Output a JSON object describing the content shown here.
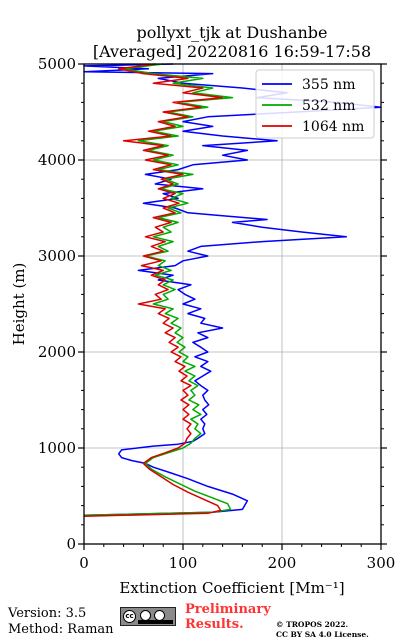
{
  "header": {
    "title_line1": "pollyxt_tjk at Dushanbe",
    "title_line2": "[Averaged] 20220816 16:59-17:58"
  },
  "footer": {
    "version": "Version: 3.5",
    "method": "Method: Raman",
    "prelim_line1": "Preliminary",
    "prelim_line2": "Results.",
    "copyright_line1": "© TROPOS 2022.",
    "copyright_line2": "CC BY SA 4.0 License.",
    "license_icon": "cc-by-sa-icon"
  },
  "chart_data": {
    "type": "line",
    "xlabel": "Extinction Coefficient [Mm⁻¹]",
    "ylabel": "Height (m)",
    "xlim": [
      0,
      300
    ],
    "ylim": [
      0,
      5000
    ],
    "xticks": [
      0,
      100,
      200,
      300
    ],
    "yticks": [
      0,
      1000,
      2000,
      3000,
      4000,
      5000
    ],
    "grid": true,
    "legend_position": "top-right",
    "series": [
      {
        "name": "355 nm",
        "color": "#0000ff",
        "points": [
          [
            0,
            300
          ],
          [
            130,
            330
          ],
          [
            160,
            360
          ],
          [
            165,
            450
          ],
          [
            150,
            520
          ],
          [
            125,
            600
          ],
          [
            105,
            680
          ],
          [
            88,
            740
          ],
          [
            70,
            800
          ],
          [
            62,
            840
          ],
          [
            48,
            870
          ],
          [
            38,
            900
          ],
          [
            35,
            940
          ],
          [
            38,
            980
          ],
          [
            70,
            1020
          ],
          [
            95,
            1040
          ],
          [
            110,
            1070
          ],
          [
            115,
            1100
          ],
          [
            122,
            1150
          ],
          [
            120,
            1200
          ],
          [
            122,
            1250
          ],
          [
            118,
            1300
          ],
          [
            124,
            1350
          ],
          [
            120,
            1400
          ],
          [
            126,
            1450
          ],
          [
            122,
            1500
          ],
          [
            120,
            1550
          ],
          [
            125,
            1600
          ],
          [
            118,
            1650
          ],
          [
            112,
            1700
          ],
          [
            120,
            1750
          ],
          [
            128,
            1800
          ],
          [
            118,
            1850
          ],
          [
            125,
            1900
          ],
          [
            112,
            1950
          ],
          [
            125,
            2000
          ],
          [
            118,
            2050
          ],
          [
            110,
            2100
          ],
          [
            125,
            2150
          ],
          [
            115,
            2200
          ],
          [
            140,
            2250
          ],
          [
            118,
            2300
          ],
          [
            122,
            2350
          ],
          [
            105,
            2400
          ],
          [
            118,
            2450
          ],
          [
            100,
            2500
          ],
          [
            112,
            2550
          ],
          [
            102,
            2600
          ],
          [
            95,
            2650
          ],
          [
            108,
            2700
          ],
          [
            75,
            2750
          ],
          [
            90,
            2800
          ],
          [
            55,
            2850
          ],
          [
            92,
            2900
          ],
          [
            100,
            2950
          ],
          [
            125,
            3000
          ],
          [
            105,
            3050
          ],
          [
            118,
            3100
          ],
          [
            180,
            3150
          ],
          [
            265,
            3200
          ],
          [
            220,
            3250
          ],
          [
            180,
            3300
          ],
          [
            150,
            3350
          ],
          [
            185,
            3380
          ],
          [
            140,
            3420
          ],
          [
            105,
            3450
          ],
          [
            92,
            3500
          ],
          [
            60,
            3550
          ],
          [
            95,
            3600
          ],
          [
            80,
            3650
          ],
          [
            120,
            3700
          ],
          [
            72,
            3750
          ],
          [
            88,
            3800
          ],
          [
            62,
            3850
          ],
          [
            95,
            3900
          ],
          [
            110,
            3950
          ],
          [
            165,
            4000
          ],
          [
            140,
            4050
          ],
          [
            165,
            4100
          ],
          [
            120,
            4150
          ],
          [
            195,
            4200
          ],
          [
            140,
            4250
          ],
          [
            100,
            4300
          ],
          [
            130,
            4350
          ],
          [
            100,
            4400
          ],
          [
            125,
            4450
          ],
          [
            215,
            4500
          ],
          [
            300,
            4550
          ],
          [
            255,
            4600
          ],
          [
            175,
            4650
          ],
          [
            205,
            4700
          ],
          [
            160,
            4750
          ],
          [
            100,
            4800
          ],
          [
            75,
            4850
          ],
          [
            130,
            4900
          ],
          [
            0,
            4920
          ],
          [
            65,
            4950
          ],
          [
            0,
            4980
          ],
          [
            90,
            5000
          ]
        ]
      },
      {
        "name": "532 nm",
        "color": "#00aa00",
        "points": [
          [
            0,
            300
          ],
          [
            130,
            330
          ],
          [
            148,
            360
          ],
          [
            145,
            420
          ],
          [
            130,
            480
          ],
          [
            112,
            550
          ],
          [
            98,
            620
          ],
          [
            82,
            700
          ],
          [
            68,
            780
          ],
          [
            62,
            840
          ],
          [
            70,
            900
          ],
          [
            85,
            950
          ],
          [
            100,
            1000
          ],
          [
            108,
            1050
          ],
          [
            112,
            1100
          ],
          [
            118,
            1150
          ],
          [
            112,
            1200
          ],
          [
            115,
            1250
          ],
          [
            108,
            1300
          ],
          [
            118,
            1350
          ],
          [
            110,
            1400
          ],
          [
            116,
            1450
          ],
          [
            106,
            1500
          ],
          [
            112,
            1550
          ],
          [
            108,
            1600
          ],
          [
            115,
            1650
          ],
          [
            106,
            1700
          ],
          [
            112,
            1750
          ],
          [
            102,
            1800
          ],
          [
            112,
            1850
          ],
          [
            100,
            1900
          ],
          [
            105,
            1950
          ],
          [
            96,
            2000
          ],
          [
            102,
            2050
          ],
          [
            94,
            2100
          ],
          [
            100,
            2150
          ],
          [
            92,
            2200
          ],
          [
            98,
            2250
          ],
          [
            88,
            2300
          ],
          [
            95,
            2350
          ],
          [
            82,
            2400
          ],
          [
            90,
            2450
          ],
          [
            70,
            2500
          ],
          [
            85,
            2550
          ],
          [
            80,
            2600
          ],
          [
            92,
            2650
          ],
          [
            80,
            2700
          ],
          [
            90,
            2750
          ],
          [
            72,
            2800
          ],
          [
            88,
            2850
          ],
          [
            75,
            2900
          ],
          [
            82,
            2950
          ],
          [
            62,
            3000
          ],
          [
            85,
            3050
          ],
          [
            75,
            3100
          ],
          [
            90,
            3150
          ],
          [
            70,
            3200
          ],
          [
            88,
            3250
          ],
          [
            80,
            3300
          ],
          [
            95,
            3350
          ],
          [
            75,
            3400
          ],
          [
            98,
            3450
          ],
          [
            85,
            3500
          ],
          [
            105,
            3550
          ],
          [
            88,
            3600
          ],
          [
            100,
            3650
          ],
          [
            78,
            3700
          ],
          [
            95,
            3750
          ],
          [
            82,
            3800
          ],
          [
            110,
            3850
          ],
          [
            75,
            3900
          ],
          [
            95,
            3950
          ],
          [
            70,
            4000
          ],
          [
            90,
            4050
          ],
          [
            65,
            4100
          ],
          [
            85,
            4150
          ],
          [
            55,
            4200
          ],
          [
            95,
            4250
          ],
          [
            70,
            4300
          ],
          [
            100,
            4350
          ],
          [
            80,
            4400
          ],
          [
            110,
            4450
          ],
          [
            85,
            4500
          ],
          [
            125,
            4550
          ],
          [
            95,
            4600
          ],
          [
            150,
            4650
          ],
          [
            110,
            4700
          ],
          [
            130,
            4750
          ],
          [
            90,
            4800
          ],
          [
            120,
            4850
          ],
          [
            70,
            4900
          ],
          [
            40,
            4950
          ],
          [
            80,
            5000
          ]
        ]
      },
      {
        "name": "1064 nm",
        "color": "#dd0000",
        "points": [
          [
            0,
            290
          ],
          [
            125,
            320
          ],
          [
            138,
            350
          ],
          [
            135,
            400
          ],
          [
            122,
            460
          ],
          [
            105,
            540
          ],
          [
            90,
            620
          ],
          [
            78,
            700
          ],
          [
            66,
            780
          ],
          [
            60,
            840
          ],
          [
            68,
            900
          ],
          [
            82,
            950
          ],
          [
            95,
            1000
          ],
          [
            102,
            1050
          ],
          [
            104,
            1100
          ],
          [
            108,
            1150
          ],
          [
            104,
            1200
          ],
          [
            108,
            1250
          ],
          [
            100,
            1300
          ],
          [
            106,
            1350
          ],
          [
            100,
            1400
          ],
          [
            106,
            1450
          ],
          [
            98,
            1500
          ],
          [
            105,
            1550
          ],
          [
            100,
            1600
          ],
          [
            108,
            1650
          ],
          [
            98,
            1700
          ],
          [
            104,
            1750
          ],
          [
            96,
            1800
          ],
          [
            102,
            1850
          ],
          [
            92,
            1900
          ],
          [
            98,
            1950
          ],
          [
            88,
            2000
          ],
          [
            95,
            2050
          ],
          [
            86,
            2100
          ],
          [
            92,
            2150
          ],
          [
            82,
            2200
          ],
          [
            90,
            2250
          ],
          [
            80,
            2300
          ],
          [
            86,
            2350
          ],
          [
            75,
            2400
          ],
          [
            82,
            2450
          ],
          [
            55,
            2500
          ],
          [
            78,
            2550
          ],
          [
            72,
            2600
          ],
          [
            85,
            2650
          ],
          [
            75,
            2700
          ],
          [
            82,
            2750
          ],
          [
            68,
            2800
          ],
          [
            80,
            2850
          ],
          [
            58,
            2900
          ],
          [
            78,
            2950
          ],
          [
            60,
            3000
          ],
          [
            80,
            3050
          ],
          [
            68,
            3100
          ],
          [
            82,
            3150
          ],
          [
            62,
            3200
          ],
          [
            80,
            3250
          ],
          [
            72,
            3300
          ],
          [
            88,
            3350
          ],
          [
            70,
            3400
          ],
          [
            92,
            3450
          ],
          [
            80,
            3500
          ],
          [
            96,
            3550
          ],
          [
            80,
            3600
          ],
          [
            92,
            3650
          ],
          [
            75,
            3700
          ],
          [
            90,
            3750
          ],
          [
            78,
            3800
          ],
          [
            100,
            3850
          ],
          [
            70,
            3900
          ],
          [
            88,
            3950
          ],
          [
            62,
            4000
          ],
          [
            85,
            4050
          ],
          [
            60,
            4100
          ],
          [
            80,
            4150
          ],
          [
            40,
            4200
          ],
          [
            88,
            4250
          ],
          [
            65,
            4300
          ],
          [
            92,
            4350
          ],
          [
            75,
            4400
          ],
          [
            105,
            4450
          ],
          [
            80,
            4500
          ],
          [
            118,
            4550
          ],
          [
            90,
            4600
          ],
          [
            140,
            4650
          ],
          [
            100,
            4700
          ],
          [
            120,
            4750
          ],
          [
            70,
            4800
          ],
          [
            105,
            4850
          ],
          [
            60,
            4900
          ],
          [
            35,
            4950
          ],
          [
            72,
            5000
          ]
        ]
      }
    ]
  }
}
